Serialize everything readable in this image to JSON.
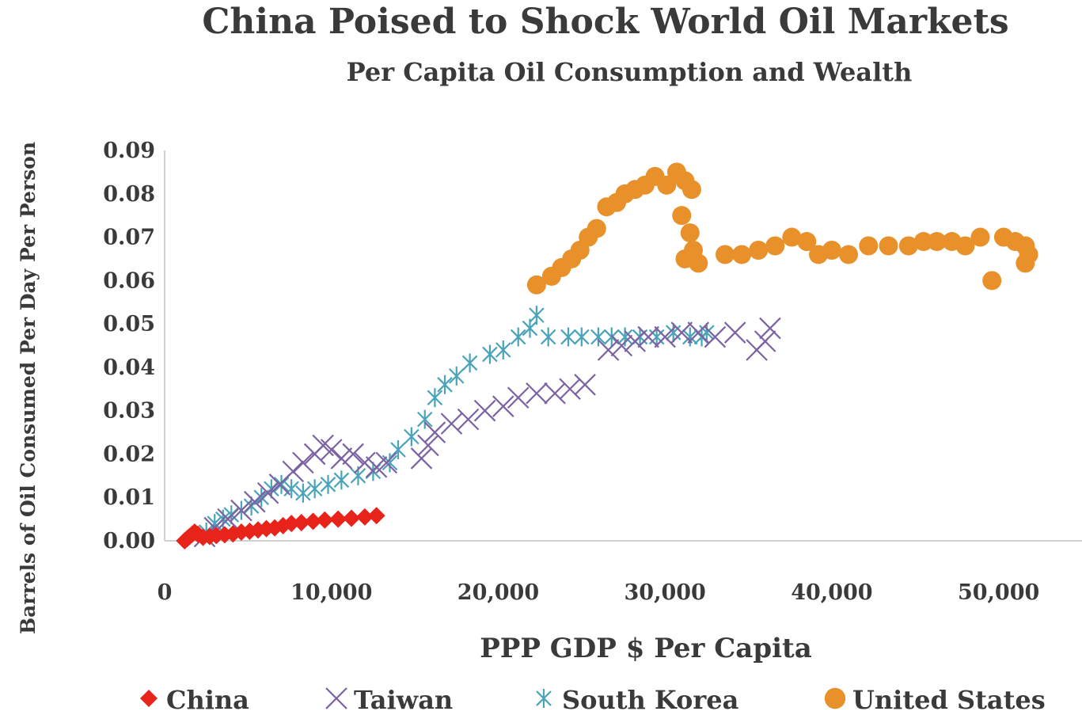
{
  "chart_data": {
    "type": "scatter",
    "title": "China Poised to Shock World Oil Markets",
    "subtitle": "Per Capita Oil Consumption and Wealth",
    "xlabel": "PPP GDP $ Per Capita",
    "ylabel": "Barrels of Oil Consumed Per Day Per Person",
    "xlim": [
      0,
      55000
    ],
    "ylim": [
      0,
      0.09
    ],
    "x_ticks": [
      0,
      10000,
      20000,
      30000,
      40000,
      50000
    ],
    "x_tick_labels": [
      "0",
      "10,000",
      "20,000",
      "30,000",
      "40,000",
      "50,000"
    ],
    "y_ticks": [
      0,
      0.01,
      0.02,
      0.03,
      0.04,
      0.05,
      0.06,
      0.07,
      0.08,
      0.09
    ],
    "y_tick_labels": [
      "0.00",
      "0.01",
      "0.02",
      "0.03",
      "0.04",
      "0.05",
      "0.06",
      "0.07",
      "0.08",
      "0.09"
    ],
    "grid": false,
    "legend_position": "bottom",
    "series": [
      {
        "name": "China",
        "marker": "diamond",
        "color": "#e8241a",
        "points": [
          [
            1200,
            0.0
          ],
          [
            1350,
            0.0005
          ],
          [
            1500,
            0.001
          ],
          [
            1650,
            0.0015
          ],
          [
            1800,
            0.002
          ],
          [
            2000,
            0.0015
          ],
          [
            2300,
            0.0008
          ],
          [
            2700,
            0.001
          ],
          [
            3100,
            0.0012
          ],
          [
            3600,
            0.0014
          ],
          [
            4100,
            0.0016
          ],
          [
            4600,
            0.002
          ],
          [
            5100,
            0.0022
          ],
          [
            5600,
            0.0025
          ],
          [
            6100,
            0.0028
          ],
          [
            6600,
            0.003
          ],
          [
            7100,
            0.0035
          ],
          [
            7600,
            0.004
          ],
          [
            8200,
            0.0042
          ],
          [
            8900,
            0.0045
          ],
          [
            9600,
            0.0048
          ],
          [
            10400,
            0.005
          ],
          [
            11200,
            0.0052
          ],
          [
            12000,
            0.0055
          ],
          [
            12700,
            0.0058
          ]
        ]
      },
      {
        "name": "Taiwan",
        "marker": "x",
        "color": "#7b62a3",
        "points": [
          [
            2400,
            0.001
          ],
          [
            3000,
            0.003
          ],
          [
            3800,
            0.005
          ],
          [
            4600,
            0.007
          ],
          [
            5400,
            0.009
          ],
          [
            6200,
            0.011
          ],
          [
            6900,
            0.013
          ],
          [
            7700,
            0.016
          ],
          [
            8300,
            0.018
          ],
          [
            9000,
            0.02
          ],
          [
            9500,
            0.022
          ],
          [
            10000,
            0.021
          ],
          [
            10600,
            0.019
          ],
          [
            11300,
            0.02
          ],
          [
            12000,
            0.018
          ],
          [
            12700,
            0.017
          ],
          [
            13300,
            0.018
          ],
          [
            15400,
            0.019
          ],
          [
            15800,
            0.022
          ],
          [
            16200,
            0.025
          ],
          [
            17200,
            0.027
          ],
          [
            18200,
            0.028
          ],
          [
            19200,
            0.03
          ],
          [
            20300,
            0.031
          ],
          [
            21200,
            0.033
          ],
          [
            22300,
            0.034
          ],
          [
            23400,
            0.034
          ],
          [
            24300,
            0.035
          ],
          [
            25200,
            0.036
          ],
          [
            26600,
            0.044
          ],
          [
            27400,
            0.045
          ],
          [
            28200,
            0.046
          ],
          [
            29000,
            0.047
          ],
          [
            30000,
            0.047
          ],
          [
            31000,
            0.048
          ],
          [
            32000,
            0.048
          ],
          [
            33000,
            0.047
          ],
          [
            34200,
            0.048
          ],
          [
            35500,
            0.044
          ],
          [
            36000,
            0.046
          ],
          [
            36300,
            0.049
          ]
        ]
      },
      {
        "name": "South Korea",
        "marker": "star",
        "color": "#4aa3b8",
        "points": [
          [
            2500,
            0.002
          ],
          [
            3000,
            0.004
          ],
          [
            3500,
            0.005
          ],
          [
            4000,
            0.006
          ],
          [
            4600,
            0.007
          ],
          [
            5200,
            0.008
          ],
          [
            5800,
            0.01
          ],
          [
            6400,
            0.012
          ],
          [
            7000,
            0.013
          ],
          [
            7600,
            0.012
          ],
          [
            8300,
            0.011
          ],
          [
            9000,
            0.012
          ],
          [
            9800,
            0.013
          ],
          [
            10600,
            0.014
          ],
          [
            11600,
            0.015
          ],
          [
            12500,
            0.016
          ],
          [
            13500,
            0.018
          ],
          [
            14000,
            0.021
          ],
          [
            14800,
            0.024
          ],
          [
            15600,
            0.028
          ],
          [
            16200,
            0.033
          ],
          [
            16800,
            0.036
          ],
          [
            17500,
            0.038
          ],
          [
            18300,
            0.041
          ],
          [
            19500,
            0.043
          ],
          [
            20300,
            0.044
          ],
          [
            21200,
            0.047
          ],
          [
            21900,
            0.049
          ],
          [
            22300,
            0.052
          ],
          [
            23000,
            0.047
          ],
          [
            24200,
            0.047
          ],
          [
            25000,
            0.047
          ],
          [
            26000,
            0.047
          ],
          [
            26800,
            0.047
          ],
          [
            27600,
            0.047
          ],
          [
            28500,
            0.047
          ],
          [
            29500,
            0.047
          ],
          [
            30500,
            0.048
          ],
          [
            31500,
            0.047
          ],
          [
            32200,
            0.047
          ],
          [
            32500,
            0.048
          ]
        ]
      },
      {
        "name": "United States",
        "marker": "circle",
        "color": "#e8902a",
        "points": [
          [
            22300,
            0.059
          ],
          [
            23200,
            0.061
          ],
          [
            23800,
            0.063
          ],
          [
            24400,
            0.065
          ],
          [
            24900,
            0.067
          ],
          [
            25400,
            0.07
          ],
          [
            25900,
            0.072
          ],
          [
            26500,
            0.077
          ],
          [
            27100,
            0.078
          ],
          [
            27600,
            0.08
          ],
          [
            28200,
            0.081
          ],
          [
            28800,
            0.082
          ],
          [
            29400,
            0.084
          ],
          [
            30100,
            0.082
          ],
          [
            30700,
            0.085
          ],
          [
            31200,
            0.083
          ],
          [
            31600,
            0.081
          ],
          [
            31000,
            0.075
          ],
          [
            31500,
            0.071
          ],
          [
            31700,
            0.067
          ],
          [
            31200,
            0.065
          ],
          [
            32000,
            0.064
          ],
          [
            33600,
            0.066
          ],
          [
            34600,
            0.066
          ],
          [
            35600,
            0.067
          ],
          [
            36600,
            0.068
          ],
          [
            37600,
            0.07
          ],
          [
            38500,
            0.069
          ],
          [
            39200,
            0.066
          ],
          [
            40000,
            0.067
          ],
          [
            41000,
            0.066
          ],
          [
            42200,
            0.068
          ],
          [
            43400,
            0.068
          ],
          [
            44600,
            0.068
          ],
          [
            45500,
            0.069
          ],
          [
            46300,
            0.069
          ],
          [
            47200,
            0.069
          ],
          [
            48000,
            0.068
          ],
          [
            48900,
            0.07
          ],
          [
            49600,
            0.06
          ],
          [
            50300,
            0.07
          ],
          [
            51000,
            0.069
          ],
          [
            51600,
            0.068
          ],
          [
            51800,
            0.066
          ],
          [
            51600,
            0.064
          ]
        ]
      }
    ]
  }
}
